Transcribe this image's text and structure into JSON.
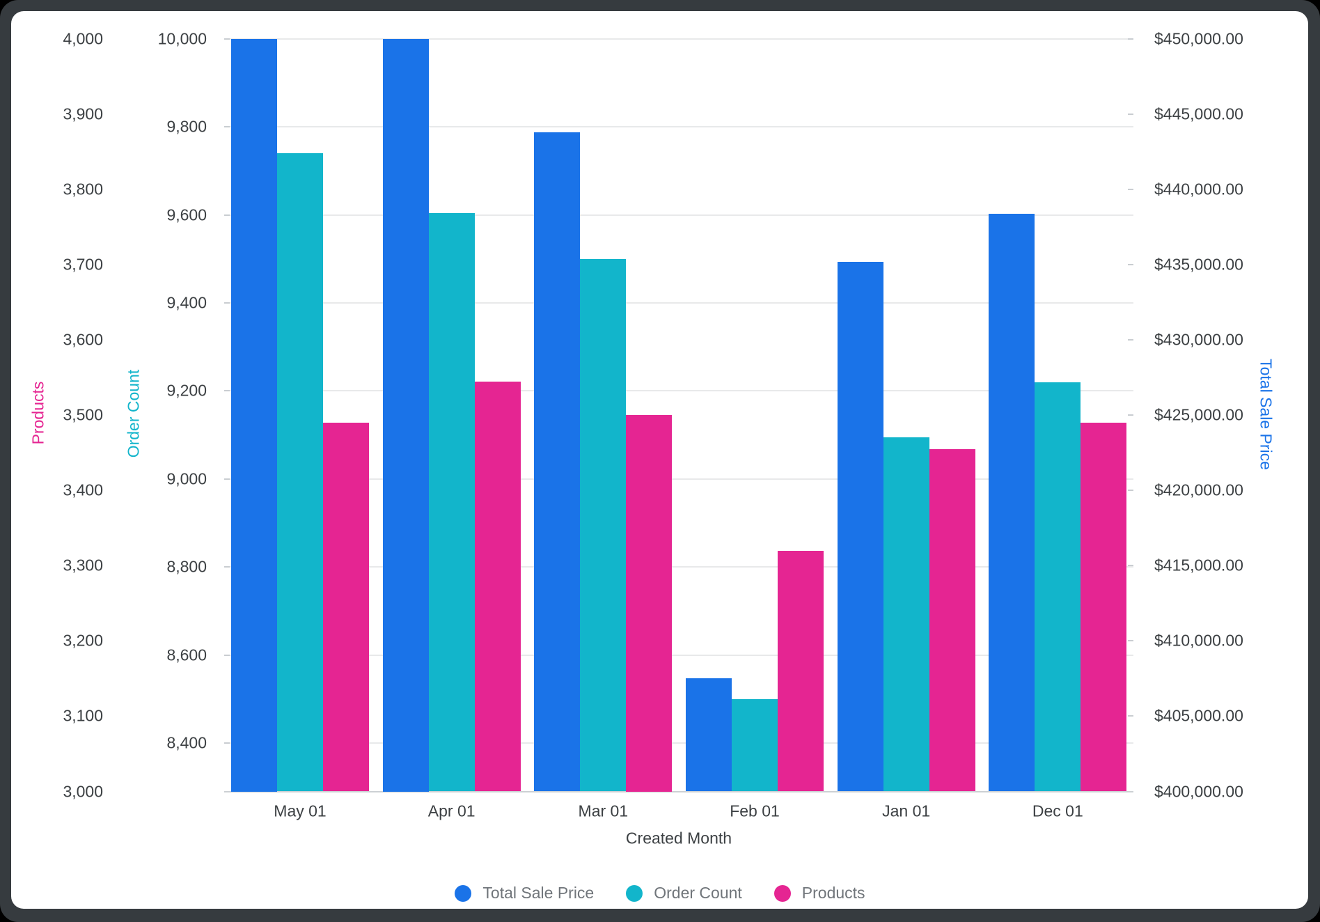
{
  "chart_data": {
    "type": "bar",
    "categories": [
      "May 01",
      "Apr 01",
      "Mar 01",
      "Feb 01",
      "Jan 01",
      "Dec 01"
    ],
    "xlabel": "Created Month",
    "series": [
      {
        "name": "Total Sale Price",
        "axis": "price",
        "color": "#1A73E8",
        "values": [
          450000,
          450000,
          443800,
          407500,
          435200,
          438400
        ]
      },
      {
        "name": "Order Count",
        "axis": "order",
        "color": "#12B5CB",
        "values": [
          9740,
          9605,
          9500,
          8500,
          9095,
          9220
        ]
      },
      {
        "name": "Products",
        "axis": "products",
        "color": "#E52592",
        "values": [
          3490,
          3545,
          3500,
          3320,
          3455,
          3490
        ]
      }
    ],
    "axes": {
      "products": {
        "title": "Products",
        "color": "#E52592",
        "value_at_top": 4000,
        "value_at_baseline": 3000,
        "ticks": [
          {
            "v": 4000,
            "label": "4,000"
          },
          {
            "v": 3900,
            "label": "3,900"
          },
          {
            "v": 3800,
            "label": "3,800"
          },
          {
            "v": 3700,
            "label": "3,700"
          },
          {
            "v": 3600,
            "label": "3,600"
          },
          {
            "v": 3500,
            "label": "3,500"
          },
          {
            "v": 3400,
            "label": "3,400"
          },
          {
            "v": 3300,
            "label": "3,300"
          },
          {
            "v": 3200,
            "label": "3,200"
          },
          {
            "v": 3100,
            "label": "3,100"
          },
          {
            "v": 3000,
            "label": "3,000"
          }
        ]
      },
      "order": {
        "title": "Order Count",
        "color": "#12B5CB",
        "value_at_top": 10000,
        "value_at_baseline": 8290,
        "gridlines": true,
        "ticks": [
          {
            "v": 10000,
            "label": "10,000"
          },
          {
            "v": 9800,
            "label": "9,800"
          },
          {
            "v": 9600,
            "label": "9,600"
          },
          {
            "v": 9400,
            "label": "9,400"
          },
          {
            "v": 9200,
            "label": "9,200"
          },
          {
            "v": 9000,
            "label": "9,000"
          },
          {
            "v": 8800,
            "label": "8,800"
          },
          {
            "v": 8600,
            "label": "8,600"
          },
          {
            "v": 8400,
            "label": "8,400"
          }
        ]
      },
      "price": {
        "title": "Total Sale Price",
        "color": "#1A73E8",
        "value_at_top": 450000,
        "value_at_baseline": 400000,
        "ticks": [
          {
            "v": 450000,
            "label": "$450,000.00"
          },
          {
            "v": 445000,
            "label": "$445,000.00"
          },
          {
            "v": 440000,
            "label": "$440,000.00"
          },
          {
            "v": 435000,
            "label": "$435,000.00"
          },
          {
            "v": 430000,
            "label": "$430,000.00"
          },
          {
            "v": 425000,
            "label": "$425,000.00"
          },
          {
            "v": 420000,
            "label": "$420,000.00"
          },
          {
            "v": 415000,
            "label": "$415,000.00"
          },
          {
            "v": 410000,
            "label": "$410,000.00"
          },
          {
            "v": 405000,
            "label": "$405,000.00"
          },
          {
            "v": 400000,
            "label": "$400,000.00"
          }
        ]
      }
    },
    "legend": [
      {
        "label": "Total Sale Price",
        "color": "#1A73E8"
      },
      {
        "label": "Order Count",
        "color": "#12B5CB"
      },
      {
        "label": "Products",
        "color": "#E52592"
      }
    ]
  }
}
